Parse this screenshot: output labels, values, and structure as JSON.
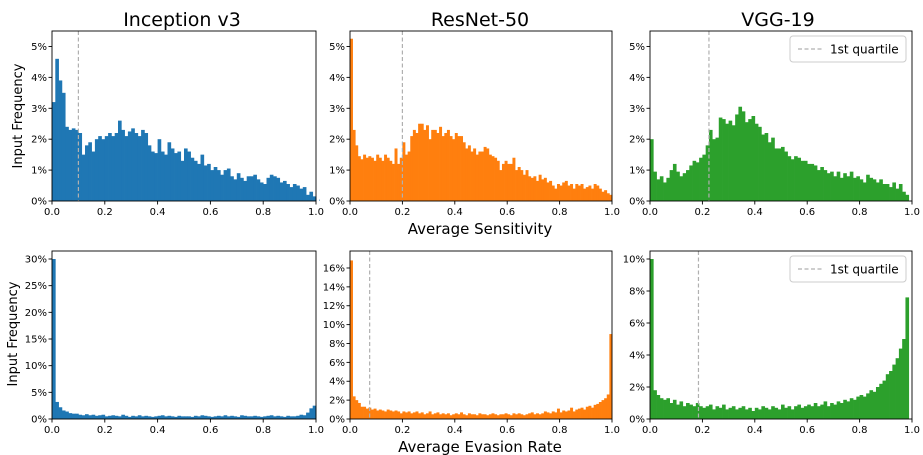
{
  "figure": {
    "column_titles": [
      "Inception v3",
      "ResNet-50",
      "VGG-19"
    ],
    "row_xlabels": [
      "Average Sensitivity",
      "Average Evasion Rate"
    ],
    "ylabel": "Input Frequency",
    "legend_label": "1st quartile"
  },
  "chart_data": [
    {
      "type": "bar",
      "title": "Inception v3",
      "xlabel": "",
      "ylabel": "Input Frequency",
      "color": "#1f77b4",
      "xlim": [
        0,
        1
      ],
      "ylim": [
        0,
        5.5
      ],
      "xticks": [
        "0.0",
        "0.2",
        "0.4",
        "0.6",
        "0.8",
        "1.0"
      ],
      "yticks": [
        0,
        1,
        2,
        3,
        4,
        5
      ],
      "ytick_labels": [
        "0%",
        "1%",
        "2%",
        "3%",
        "4%",
        "5%"
      ],
      "quartile_line": 0.1,
      "bin_width": 0.0125,
      "values": [
        3.2,
        4.6,
        3.9,
        3.5,
        2.4,
        2.3,
        2.35,
        2.3,
        2.2,
        1.5,
        1.8,
        1.9,
        1.6,
        2.0,
        2.1,
        2.0,
        2.1,
        2.2,
        2.1,
        2.2,
        2.6,
        2.3,
        2.1,
        2.25,
        2.35,
        2.2,
        2.1,
        2.3,
        2.2,
        1.8,
        1.6,
        1.55,
        2.0,
        1.6,
        1.5,
        1.9,
        1.7,
        1.55,
        1.6,
        1.3,
        1.7,
        1.6,
        1.4,
        1.3,
        1.2,
        1.5,
        1.15,
        1.2,
        1.0,
        1.1,
        1.0,
        0.85,
        1.0,
        1.05,
        0.8,
        0.7,
        0.9,
        0.75,
        0.65,
        0.8,
        0.8,
        0.85,
        0.7,
        0.6,
        0.55,
        0.75,
        0.85,
        0.8,
        0.75,
        0.6,
        0.65,
        0.55,
        0.45,
        0.55,
        0.5,
        0.4,
        0.45,
        0.2,
        0.3,
        0.15,
        0.1,
        0.05
      ]
    },
    {
      "type": "bar",
      "title": "ResNet-50",
      "xlabel": "Average Sensitivity",
      "ylabel": "",
      "color": "#ff7f0e",
      "xlim": [
        0,
        1
      ],
      "ylim": [
        0,
        5.5
      ],
      "xticks": [
        "0.0",
        "0.2",
        "0.4",
        "0.6",
        "0.8",
        "1.0"
      ],
      "yticks": [
        0,
        1,
        2,
        3,
        4,
        5
      ],
      "ytick_labels": [
        "0%",
        "1%",
        "2%",
        "3%",
        "4%",
        "5%"
      ],
      "quartile_line": 0.2,
      "bin_width": 0.01,
      "values": [
        5.25,
        2.3,
        1.8,
        1.45,
        1.35,
        1.5,
        1.4,
        1.45,
        1.4,
        1.3,
        1.5,
        1.4,
        1.3,
        1.5,
        1.4,
        1.3,
        1.2,
        1.7,
        1.2,
        1.4,
        1.9,
        1.5,
        1.6,
        2.1,
        2.3,
        2.2,
        2.5,
        2.5,
        2.3,
        2.45,
        2.0,
        2.3,
        2.3,
        2.2,
        2.4,
        2.1,
        2.2,
        2.3,
        2.1,
        2.0,
        2.2,
        2.1,
        2.1,
        1.9,
        1.7,
        1.8,
        1.6,
        1.7,
        1.5,
        1.6,
        1.6,
        1.75,
        1.7,
        1.5,
        1.45,
        1.4,
        1.3,
        1.0,
        1.2,
        1.3,
        1.2,
        1.2,
        1.4,
        1.0,
        1.1,
        1.0,
        0.85,
        1.0,
        0.8,
        0.75,
        0.8,
        0.65,
        0.85,
        0.7,
        0.75,
        0.6,
        0.65,
        0.5,
        0.4,
        0.55,
        0.5,
        0.6,
        0.65,
        0.5,
        0.55,
        0.4,
        0.55,
        0.5,
        0.55,
        0.4,
        0.45,
        0.5,
        0.4,
        0.55,
        0.5,
        0.4,
        0.3,
        0.35,
        0.25,
        0.2
      ]
    },
    {
      "type": "bar",
      "title": "VGG-19",
      "xlabel": "",
      "ylabel": "",
      "color": "#2ca02c",
      "xlim": [
        0,
        1
      ],
      "ylim": [
        0,
        5.5
      ],
      "xticks": [
        "0.0",
        "0.2",
        "0.4",
        "0.6",
        "0.8",
        "1.0"
      ],
      "yticks": [
        0,
        1,
        2,
        3,
        4,
        5
      ],
      "ytick_labels": [
        "0%",
        "1%",
        "2%",
        "3%",
        "4%",
        "5%"
      ],
      "quartile_line": 0.225,
      "legend": "1st quartile",
      "legend_position": "top-right",
      "bin_width": 0.0125,
      "values": [
        2.0,
        0.95,
        0.7,
        0.8,
        0.6,
        0.75,
        1.0,
        1.2,
        0.95,
        0.8,
        0.9,
        1.0,
        1.15,
        1.3,
        1.25,
        1.4,
        1.5,
        1.8,
        2.3,
        2.0,
        2.05,
        2.7,
        2.65,
        2.5,
        2.6,
        2.45,
        2.8,
        3.05,
        2.9,
        2.55,
        2.65,
        2.75,
        2.5,
        2.4,
        2.15,
        2.2,
        1.9,
        2.05,
        1.7,
        1.7,
        1.75,
        1.6,
        1.45,
        1.35,
        1.45,
        1.4,
        1.3,
        1.3,
        1.2,
        1.2,
        1.15,
        1.0,
        1.1,
        1.0,
        0.9,
        0.95,
        0.8,
        0.95,
        0.75,
        0.9,
        0.8,
        0.95,
        0.75,
        0.8,
        0.7,
        0.6,
        0.85,
        0.75,
        0.7,
        0.6,
        0.7,
        0.55,
        0.55,
        0.45,
        0.6,
        0.4,
        0.55,
        0.3,
        0.2
      ]
    },
    {
      "type": "bar",
      "title": "",
      "xlabel": "",
      "ylabel": "Input Frequency",
      "color": "#1f77b4",
      "xlim": [
        0,
        1
      ],
      "ylim": [
        0,
        31.5
      ],
      "xticks": [
        "0.0",
        "0.2",
        "0.4",
        "0.6",
        "0.8",
        "1.0"
      ],
      "yticks": [
        0,
        5,
        10,
        15,
        20,
        25,
        30
      ],
      "ytick_labels": [
        "0%",
        "5%",
        "10%",
        "15%",
        "20%",
        "25%",
        "30%"
      ],
      "bin_width": 0.0125,
      "values": [
        30.0,
        3.2,
        2.2,
        1.6,
        1.4,
        1.1,
        1.0,
        1.0,
        0.8,
        0.7,
        0.9,
        0.7,
        0.8,
        0.6,
        0.7,
        0.8,
        0.5,
        0.6,
        0.7,
        0.6,
        0.5,
        0.8,
        0.6,
        0.4,
        0.6,
        0.5,
        0.7,
        0.5,
        0.6,
        0.5,
        0.4,
        0.5,
        0.6,
        0.7,
        0.5,
        0.6,
        0.5,
        0.4,
        0.6,
        0.5,
        0.5,
        0.5,
        0.4,
        0.6,
        0.5,
        0.7,
        0.6,
        0.5,
        0.4,
        0.5,
        0.6,
        0.5,
        0.7,
        0.5,
        0.6,
        0.5,
        0.4,
        0.7,
        0.6,
        0.5,
        0.5,
        0.6,
        0.5,
        0.4,
        0.5,
        0.6,
        0.7,
        0.5,
        0.6,
        0.5,
        0.4,
        0.6,
        0.5,
        0.5,
        0.6,
        0.8,
        0.7,
        1.2,
        2.0,
        2.5
      ]
    },
    {
      "type": "bar",
      "title": "",
      "xlabel": "Average Evasion Rate",
      "ylabel": "",
      "color": "#ff7f0e",
      "xlim": [
        0,
        1
      ],
      "ylim": [
        0,
        17.8
      ],
      "xticks": [
        "0.0",
        "0.2",
        "0.4",
        "0.6",
        "0.8",
        "1.0"
      ],
      "yticks": [
        0,
        2,
        4,
        6,
        8,
        10,
        12,
        14,
        16
      ],
      "ytick_labels": [
        "0%",
        "2%",
        "4%",
        "6%",
        "8%",
        "10%",
        "12%",
        "14%",
        "16%"
      ],
      "quartile_line": 0.075,
      "bin_width": 0.01,
      "values": [
        16.8,
        2.4,
        2.0,
        1.7,
        1.3,
        1.3,
        1.1,
        1.2,
        1.0,
        1.1,
        0.9,
        1.0,
        0.9,
        0.8,
        1.0,
        0.9,
        0.8,
        0.9,
        0.8,
        0.6,
        0.8,
        0.7,
        0.8,
        0.6,
        0.7,
        0.8,
        0.6,
        0.7,
        0.5,
        0.6,
        0.8,
        0.5,
        0.6,
        0.7,
        0.5,
        0.6,
        0.5,
        0.6,
        0.4,
        0.5,
        0.6,
        0.5,
        0.7,
        0.5,
        0.4,
        0.6,
        0.5,
        0.5,
        0.4,
        0.6,
        0.5,
        0.5,
        0.4,
        0.5,
        0.6,
        0.5,
        0.4,
        0.5,
        0.5,
        0.6,
        0.5,
        0.4,
        0.6,
        0.5,
        0.6,
        0.5,
        0.4,
        0.5,
        0.6,
        0.7,
        0.5,
        0.6,
        0.5,
        0.6,
        0.8,
        0.7,
        0.6,
        0.8,
        0.7,
        1.1,
        0.7,
        0.9,
        0.8,
        0.9,
        1.2,
        0.8,
        1.0,
        1.1,
        1.2,
        1.0,
        1.3,
        1.4,
        1.2,
        1.5,
        1.6,
        1.8,
        2.0,
        2.2,
        2.6,
        9.0
      ]
    },
    {
      "type": "bar",
      "title": "",
      "xlabel": "",
      "ylabel": "",
      "color": "#2ca02c",
      "xlim": [
        0,
        1
      ],
      "ylim": [
        0,
        10.5
      ],
      "xticks": [
        "0.0",
        "0.2",
        "0.4",
        "0.6",
        "0.8",
        "1.0"
      ],
      "yticks": [
        0,
        2,
        4,
        6,
        8,
        10
      ],
      "ytick_labels": [
        "0%",
        "2%",
        "4%",
        "6%",
        "8%",
        "10%"
      ],
      "quartile_line": 0.185,
      "legend": "1st quartile",
      "legend_position": "top-right",
      "bin_width": 0.0125,
      "values": [
        10.0,
        1.8,
        1.5,
        1.3,
        1.2,
        1.3,
        1.0,
        1.2,
        0.9,
        1.1,
        0.8,
        1.0,
        0.9,
        0.8,
        1.0,
        0.8,
        0.7,
        0.8,
        0.9,
        0.6,
        0.8,
        0.7,
        0.9,
        0.6,
        0.7,
        0.8,
        0.6,
        0.7,
        0.8,
        0.6,
        0.7,
        0.5,
        0.7,
        0.6,
        0.8,
        0.7,
        0.6,
        0.8,
        0.7,
        0.6,
        0.9,
        0.7,
        0.8,
        0.6,
        0.8,
        0.9,
        0.7,
        0.8,
        0.9,
        0.8,
        1.0,
        0.8,
        0.9,
        1.1,
        0.8,
        1.0,
        0.9,
        1.1,
        1.0,
        1.2,
        1.1,
        1.3,
        1.2,
        1.4,
        1.5,
        1.4,
        1.6,
        1.8,
        1.7,
        2.0,
        2.2,
        2.4,
        2.8,
        3.0,
        3.4,
        3.8,
        4.4,
        5.0,
        7.6
      ]
    }
  ]
}
